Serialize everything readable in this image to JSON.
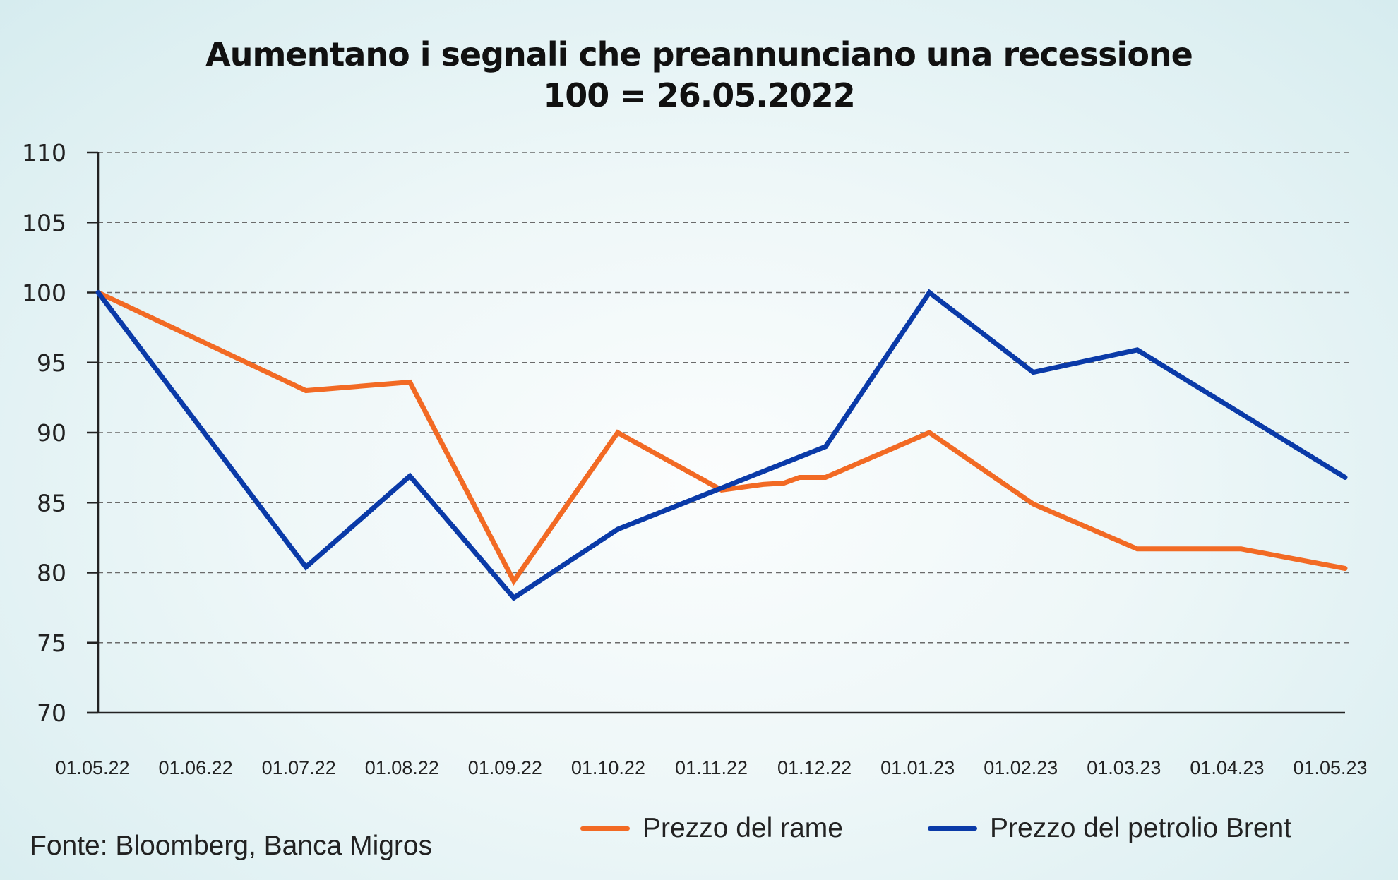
{
  "chart_data": {
    "type": "line",
    "title": "Aumentano i segnali che preannunciano una recessione",
    "subtitle": "100 = 26.05.2022",
    "xlabel": "",
    "ylabel": "",
    "ylim": [
      70,
      110
    ],
    "yticks": [
      110,
      105,
      100,
      95,
      90,
      85,
      80,
      75,
      70
    ],
    "ytick_labels": [
      "110",
      "105",
      "100",
      "95",
      "90",
      "85",
      "80",
      "75",
      "70"
    ],
    "categories": [
      "01.05.22",
      "01.06.22",
      "01.07.22",
      "01.08.22",
      "01.09.22",
      "01.10.22",
      "01.11.22",
      "01.12.22",
      "01.01.23",
      "01.02.23",
      "01.03.23",
      "01.04.23",
      "01.05.23"
    ],
    "grid": "horizontal dashed",
    "legend_position": "bottom-right",
    "series": [
      {
        "name": "Prezzo del rame",
        "color": "#f26a24",
        "points": [
          {
            "x": 0,
            "y": 100
          },
          {
            "x": 2,
            "y": 93.0
          },
          {
            "x": 3,
            "y": 93.6
          },
          {
            "x": 4,
            "y": 79.4
          },
          {
            "x": 5,
            "y": 90.0
          },
          {
            "x": 6,
            "y": 85.9
          },
          {
            "x": 6.4,
            "y": 86.3
          },
          {
            "x": 6.6,
            "y": 86.4
          },
          {
            "x": 6.75,
            "y": 86.8
          },
          {
            "x": 7,
            "y": 86.8
          },
          {
            "x": 8,
            "y": 90.0
          },
          {
            "x": 9,
            "y": 84.9
          },
          {
            "x": 10,
            "y": 81.7
          },
          {
            "x": 11,
            "y": 81.7
          },
          {
            "x": 12,
            "y": 80.3
          }
        ]
      },
      {
        "name": "Prezzo del petrolio Brent",
        "color": "#0a3aa8",
        "points": [
          {
            "x": 0,
            "y": 100
          },
          {
            "x": 2,
            "y": 80.4
          },
          {
            "x": 3,
            "y": 86.9
          },
          {
            "x": 4,
            "y": 78.2
          },
          {
            "x": 5,
            "y": 83.1
          },
          {
            "x": 7,
            "y": 89.0
          },
          {
            "x": 8,
            "y": 100
          },
          {
            "x": 9,
            "y": 94.3
          },
          {
            "x": 10,
            "y": 95.9
          },
          {
            "x": 12,
            "y": 86.8
          }
        ]
      }
    ],
    "source": "Fonte: Bloomberg, Banca Migros"
  }
}
